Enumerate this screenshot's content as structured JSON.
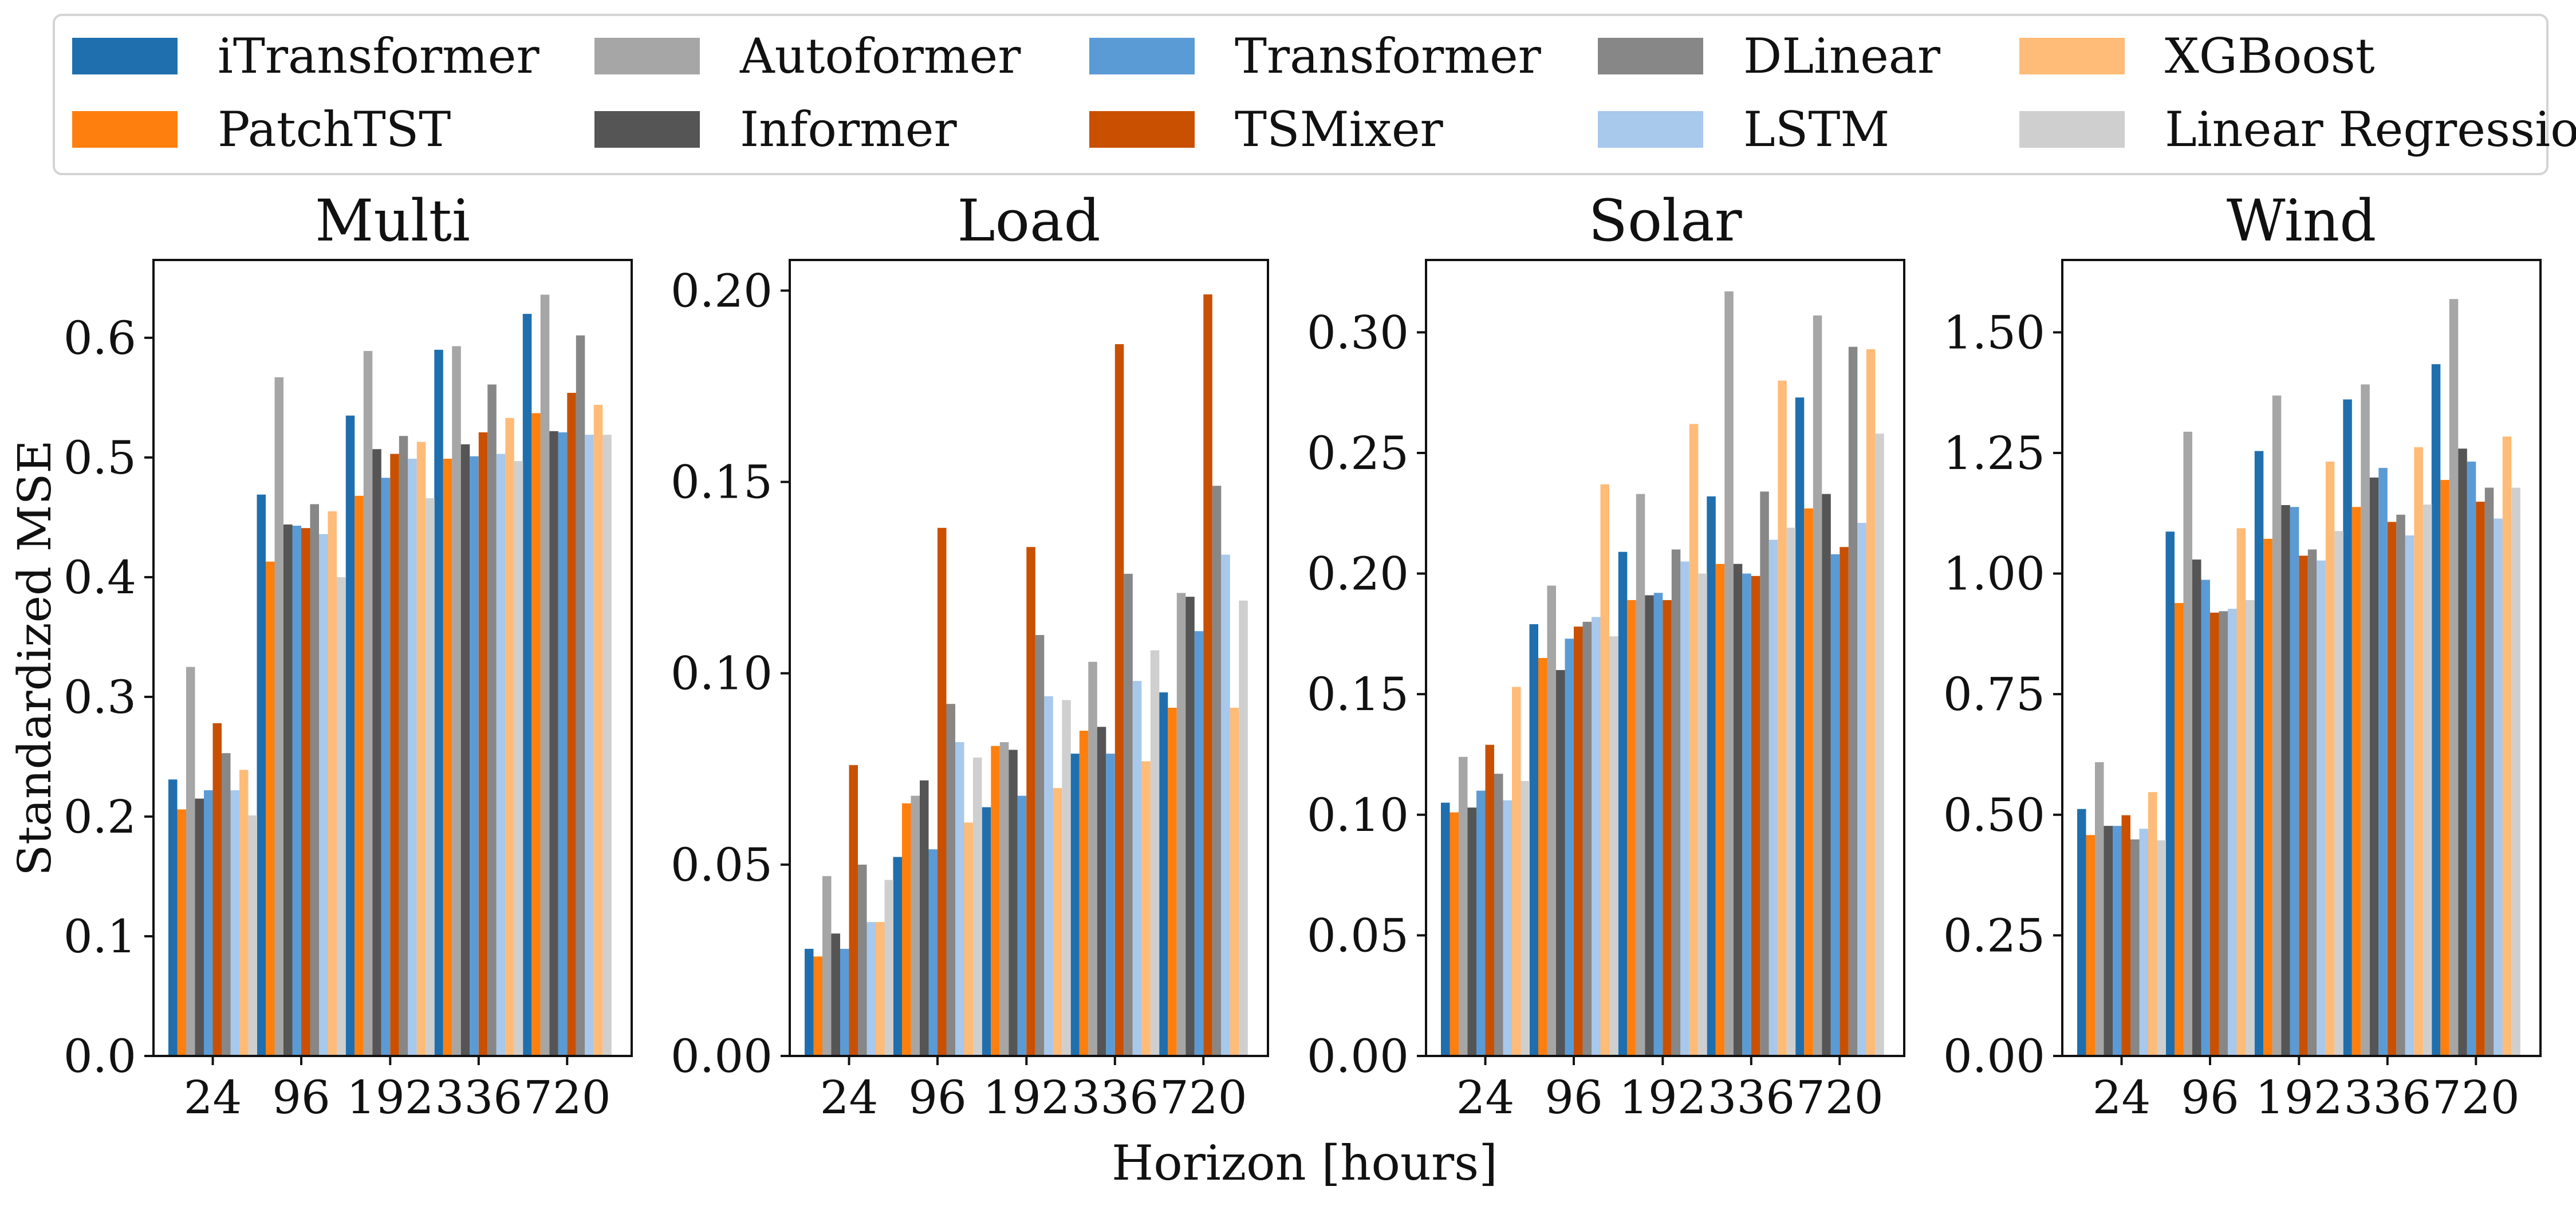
{
  "chart_data": {
    "type": "bar",
    "xlabel": "Horizon [hours]",
    "ylabel": "Standardized MSE",
    "categories": [
      "24",
      "96",
      "192",
      "336",
      "720"
    ],
    "legend": {
      "placement": "top",
      "columns": 5,
      "entries": [
        {
          "name": "iTransformer",
          "color": "#1f6fae"
        },
        {
          "name": "PatchTST",
          "color": "#ff7f0e"
        },
        {
          "name": "Autoformer",
          "color": "#a6a6a6"
        },
        {
          "name": "Informer",
          "color": "#555555"
        },
        {
          "name": "Transformer",
          "color": "#5b9bd5"
        },
        {
          "name": "TSMixer",
          "color": "#c95000"
        },
        {
          "name": "DLinear",
          "color": "#878787"
        },
        {
          "name": "LSTM",
          "color": "#a8c8ec"
        },
        {
          "name": "XGBoost",
          "color": "#ffbb78"
        },
        {
          "name": "Linear Regression",
          "color": "#cfcfcf"
        }
      ]
    },
    "panels": [
      {
        "title": "Multi",
        "ylim": [
          0,
          0.665
        ],
        "yticks": [
          "0.0",
          "0.1",
          "0.2",
          "0.3",
          "0.4",
          "0.5",
          "0.6"
        ],
        "series": [
          {
            "name": "iTransformer",
            "values": [
              0.231,
              0.469,
              0.535,
              0.59,
              0.62
            ]
          },
          {
            "name": "PatchTST",
            "values": [
              0.206,
              0.413,
              0.468,
              0.499,
              0.537
            ]
          },
          {
            "name": "Autoformer",
            "values": [
              0.325,
              0.567,
              0.589,
              0.593,
              0.636
            ]
          },
          {
            "name": "Informer",
            "values": [
              0.215,
              0.444,
              0.507,
              0.511,
              0.522
            ]
          },
          {
            "name": "Transformer",
            "values": [
              0.222,
              0.443,
              0.483,
              0.501,
              0.521
            ]
          },
          {
            "name": "TSMixer",
            "values": [
              0.278,
              0.441,
              0.503,
              0.521,
              0.554
            ]
          },
          {
            "name": "DLinear",
            "values": [
              0.253,
              0.461,
              0.518,
              0.561,
              0.602
            ]
          },
          {
            "name": "LSTM",
            "values": [
              0.222,
              0.436,
              0.499,
              0.503,
              0.519
            ]
          },
          {
            "name": "XGBoost",
            "values": [
              0.239,
              0.455,
              0.513,
              0.533,
              0.544
            ]
          },
          {
            "name": "Linear Regression",
            "values": [
              0.201,
              0.4,
              0.466,
              0.497,
              0.519
            ]
          }
        ]
      },
      {
        "title": "Load",
        "ylim": [
          0,
          0.208
        ],
        "yticks": [
          "0.00",
          "0.05",
          "0.10",
          "0.15",
          "0.20"
        ],
        "series": [
          {
            "name": "iTransformer",
            "values": [
              0.028,
              0.052,
              0.065,
              0.079,
              0.095
            ]
          },
          {
            "name": "PatchTST",
            "values": [
              0.026,
              0.066,
              0.081,
              0.085,
              0.091
            ]
          },
          {
            "name": "Autoformer",
            "values": [
              0.047,
              0.068,
              0.082,
              0.103,
              0.121
            ]
          },
          {
            "name": "Informer",
            "values": [
              0.032,
              0.072,
              0.08,
              0.086,
              0.12
            ]
          },
          {
            "name": "Transformer",
            "values": [
              0.028,
              0.054,
              0.068,
              0.079,
              0.111
            ]
          },
          {
            "name": "TSMixer",
            "values": [
              0.076,
              0.138,
              0.133,
              0.186,
              0.199
            ]
          },
          {
            "name": "DLinear",
            "values": [
              0.05,
              0.092,
              0.11,
              0.126,
              0.149
            ]
          },
          {
            "name": "LSTM",
            "values": [
              0.035,
              0.082,
              0.094,
              0.098,
              0.131
            ]
          },
          {
            "name": "XGBoost",
            "values": [
              0.035,
              0.061,
              0.07,
              0.077,
              0.091
            ]
          },
          {
            "name": "Linear Regression",
            "values": [
              0.046,
              0.078,
              0.093,
              0.106,
              0.119
            ]
          }
        ]
      },
      {
        "title": "Solar",
        "ylim": [
          0,
          0.33
        ],
        "yticks": [
          "0.00",
          "0.05",
          "0.10",
          "0.15",
          "0.20",
          "0.25",
          "0.30"
        ],
        "series": [
          {
            "name": "iTransformer",
            "values": [
              0.105,
              0.179,
              0.209,
              0.232,
              0.273
            ]
          },
          {
            "name": "PatchTST",
            "values": [
              0.101,
              0.165,
              0.189,
              0.204,
              0.227
            ]
          },
          {
            "name": "Autoformer",
            "values": [
              0.124,
              0.195,
              0.233,
              0.317,
              0.307
            ]
          },
          {
            "name": "Informer",
            "values": [
              0.103,
              0.16,
              0.191,
              0.204,
              0.233
            ]
          },
          {
            "name": "Transformer",
            "values": [
              0.11,
              0.173,
              0.192,
              0.2,
              0.208
            ]
          },
          {
            "name": "TSMixer",
            "values": [
              0.129,
              0.178,
              0.189,
              0.199,
              0.211
            ]
          },
          {
            "name": "DLinear",
            "values": [
              0.117,
              0.18,
              0.21,
              0.234,
              0.294
            ]
          },
          {
            "name": "LSTM",
            "values": [
              0.106,
              0.182,
              0.205,
              0.214,
              0.221
            ]
          },
          {
            "name": "XGBoost",
            "values": [
              0.153,
              0.237,
              0.262,
              0.28,
              0.293
            ]
          },
          {
            "name": "Linear Regression",
            "values": [
              0.114,
              0.174,
              0.2,
              0.219,
              0.258
            ]
          }
        ]
      },
      {
        "title": "Wind",
        "ylim": [
          0,
          1.65
        ],
        "yticks": [
          "0.00",
          "0.25",
          "0.50",
          "0.75",
          "1.00",
          "1.25",
          "1.50"
        ],
        "series": [
          {
            "name": "iTransformer",
            "values": [
              0.512,
              1.087,
              1.254,
              1.361,
              1.434
            ]
          },
          {
            "name": "PatchTST",
            "values": [
              0.458,
              0.939,
              1.072,
              1.138,
              1.194
            ]
          },
          {
            "name": "Autoformer",
            "values": [
              0.609,
              1.294,
              1.369,
              1.392,
              1.569
            ]
          },
          {
            "name": "Informer",
            "values": [
              0.477,
              1.029,
              1.142,
              1.199,
              1.259
            ]
          },
          {
            "name": "Transformer",
            "values": [
              0.477,
              0.987,
              1.138,
              1.219,
              1.232
            ]
          },
          {
            "name": "TSMixer",
            "values": [
              0.499,
              0.919,
              1.037,
              1.107,
              1.149
            ]
          },
          {
            "name": "DLinear",
            "values": [
              0.449,
              0.922,
              1.05,
              1.122,
              1.178
            ]
          },
          {
            "name": "LSTM",
            "values": [
              0.471,
              0.927,
              1.027,
              1.079,
              1.114
            ]
          },
          {
            "name": "XGBoost",
            "values": [
              0.547,
              1.094,
              1.232,
              1.262,
              1.284
            ]
          },
          {
            "name": "Linear Regression",
            "values": [
              0.447,
              0.945,
              1.088,
              1.143,
              1.178
            ]
          }
        ]
      }
    ]
  }
}
